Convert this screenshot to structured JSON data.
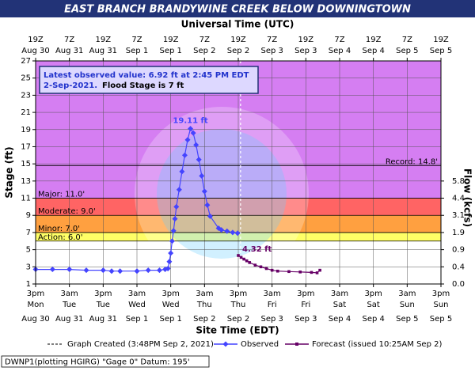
{
  "chart_data": {
    "type": "line",
    "title": "EAST BRANCH BRANDYWINE CREEK BELOW DOWNINGTOWN",
    "top_axis_title": "Universal Time (UTC)",
    "x_title": "Site Time (EDT)",
    "y_title": "Stage (ft)",
    "y2_title": "Flow (kcfs)",
    "xlim": [
      "2021-08-30T15:00",
      "2021-09-05T15:00"
    ],
    "ylim": [
      1,
      27
    ],
    "yticks": [
      1,
      3,
      5,
      7,
      9,
      11,
      13,
      15,
      17,
      19,
      21,
      23,
      25,
      27
    ],
    "grid": true,
    "y2ticks": [
      {
        "value": 0,
        "label": "0.0",
        "stage": 1
      },
      {
        "value": 0.4,
        "label": "0.4",
        "stage": 3
      },
      {
        "value": 0.9,
        "label": "0.9",
        "stage": 5
      },
      {
        "value": 1.9,
        "label": "1.9",
        "stage": 7
      },
      {
        "value": 3.1,
        "label": "3.1",
        "stage": 9
      },
      {
        "value": 4.4,
        "label": "4.4",
        "stage": 11
      },
      {
        "value": 5.8,
        "label": "5.8",
        "stage": 13
      }
    ],
    "bottom_ticks": [
      {
        "time": "3pm",
        "day": "Mon",
        "date": "Aug 30"
      },
      {
        "time": "3am",
        "day": "Tue",
        "date": "Aug 31"
      },
      {
        "time": "3pm",
        "day": "Tue",
        "date": "Aug 31"
      },
      {
        "time": "3am",
        "day": "Wed",
        "date": "Sep 1"
      },
      {
        "time": "3pm",
        "day": "Wed",
        "date": "Sep 1"
      },
      {
        "time": "3am",
        "day": "Thu",
        "date": "Sep 2"
      },
      {
        "time": "3pm",
        "day": "Thu",
        "date": "Sep 2"
      },
      {
        "time": "3am",
        "day": "Fri",
        "date": "Sep 3"
      },
      {
        "time": "3pm",
        "day": "Fri",
        "date": "Sep 3"
      },
      {
        "time": "3am",
        "day": "Sat",
        "date": "Sep 4"
      },
      {
        "time": "3pm",
        "day": "Sat",
        "date": "Sep 4"
      },
      {
        "time": "3am",
        "day": "Sun",
        "date": "Sep 5"
      },
      {
        "time": "3pm",
        "day": "Sun",
        "date": "Sep 5"
      }
    ],
    "top_ticks": [
      {
        "time": "19Z",
        "date": "Aug 30"
      },
      {
        "time": "7Z",
        "date": "Aug 31"
      },
      {
        "time": "19Z",
        "date": "Aug 31"
      },
      {
        "time": "7Z",
        "date": "Sep 1"
      },
      {
        "time": "19Z",
        "date": "Sep 1"
      },
      {
        "time": "7Z",
        "date": "Sep 2"
      },
      {
        "time": "19Z",
        "date": "Sep 2"
      },
      {
        "time": "7Z",
        "date": "Sep 3"
      },
      {
        "time": "19Z",
        "date": "Sep 3"
      },
      {
        "time": "7Z",
        "date": "Sep 4"
      },
      {
        "time": "19Z",
        "date": "Sep 4"
      },
      {
        "time": "7Z",
        "date": "Sep 5"
      },
      {
        "time": "19Z",
        "date": "Sep 5"
      }
    ],
    "flood_levels": [
      {
        "label": "Record: 14.8'",
        "value": 14.8,
        "color": "#d57ef2"
      },
      {
        "label": "Major: 11.0'",
        "value": 11.0,
        "color": "#d57ef2"
      },
      {
        "label": "Moderate: 9.0'",
        "value": 9.0,
        "color": "#ff6464"
      },
      {
        "label": "Minor: 7.0'",
        "value": 7.0,
        "color": "#ffa040"
      },
      {
        "label": "Action: 6.0'",
        "value": 6.0,
        "color": "#ffff66"
      }
    ],
    "info_box": {
      "line1": "Latest observed value: 6.92 ft at 2:45 PM EDT",
      "line2a": "2-Sep-2021.",
      "line2b": "Flood Stage is 7 ft"
    },
    "graph_created": {
      "label": "Graph Created (3:48PM Sep 2, 2021)",
      "x": "2021-09-02T15:48"
    },
    "series": [
      {
        "name": "Observed",
        "color": "#4444ff",
        "x": [
          "2021-08-30T15:00",
          "2021-08-30T21:00",
          "2021-08-31T03:00",
          "2021-08-31T09:00",
          "2021-08-31T15:00",
          "2021-08-31T18:00",
          "2021-08-31T21:00",
          "2021-09-01T03:00",
          "2021-09-01T07:00",
          "2021-09-01T11:00",
          "2021-09-01T13:00",
          "2021-09-01T14:00",
          "2021-09-01T14:30",
          "2021-09-01T15:00",
          "2021-09-01T15:30",
          "2021-09-01T16:00",
          "2021-09-01T16:30",
          "2021-09-01T17:00",
          "2021-09-01T18:00",
          "2021-09-01T19:00",
          "2021-09-01T20:00",
          "2021-09-01T21:00",
          "2021-09-01T22:00",
          "2021-09-01T23:00",
          "2021-09-02T00:00",
          "2021-09-02T01:00",
          "2021-09-02T02:00",
          "2021-09-02T03:00",
          "2021-09-02T04:00",
          "2021-09-02T05:00",
          "2021-09-02T08:00",
          "2021-09-02T09:00",
          "2021-09-02T11:00",
          "2021-09-02T13:00",
          "2021-09-02T14:45"
        ],
        "values": [
          2.7,
          2.7,
          2.7,
          2.6,
          2.6,
          2.5,
          2.5,
          2.5,
          2.6,
          2.6,
          2.7,
          2.8,
          3.6,
          4.6,
          6.0,
          7.2,
          8.6,
          10.0,
          12.0,
          14.1,
          16.0,
          17.8,
          19.11,
          18.6,
          17.2,
          15.5,
          13.6,
          11.8,
          10.2,
          8.9,
          7.5,
          7.3,
          7.15,
          7.0,
          6.92
        ],
        "value_labels": [
          null,
          null,
          null,
          null,
          null,
          null,
          null,
          null,
          null,
          null,
          null,
          null,
          null,
          null,
          null,
          null,
          null,
          null,
          null,
          null,
          null,
          null,
          "19.11 ft",
          null,
          null,
          null,
          null,
          null,
          null,
          null,
          null,
          null,
          null,
          null,
          null
        ]
      },
      {
        "name": "Forecast (issued 10:25AM Sep 2)",
        "color": "#660066",
        "x": [
          "2021-09-02T15:00",
          "2021-09-02T16:00",
          "2021-09-02T17:00",
          "2021-09-02T18:00",
          "2021-09-02T19:00",
          "2021-09-02T21:00",
          "2021-09-02T23:00",
          "2021-09-03T01:00",
          "2021-09-03T03:00",
          "2021-09-03T05:00",
          "2021-09-03T09:00",
          "2021-09-03T13:00",
          "2021-09-03T17:00",
          "2021-09-03T19:00",
          "2021-09-03T20:00"
        ],
        "values": [
          4.32,
          4.1,
          3.9,
          3.7,
          3.5,
          3.2,
          3.0,
          2.8,
          2.6,
          2.5,
          2.45,
          2.4,
          2.35,
          2.3,
          2.6
        ],
        "value_labels": [
          "4.32 ft",
          null,
          null,
          null,
          null,
          null,
          null,
          null,
          null,
          null,
          null,
          null,
          null,
          null,
          null
        ]
      }
    ],
    "footer": "DWNP1(plotting HGIRG) \"Gage 0\" Datum: 195'"
  }
}
